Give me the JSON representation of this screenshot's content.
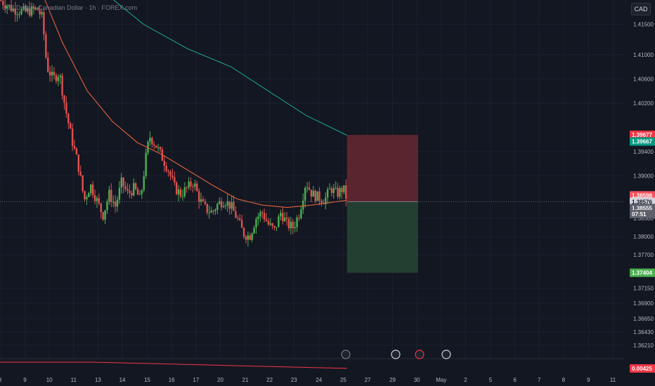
{
  "header": {
    "symbol_title": "U.S. Dollar / Canadian Dollar · 1h · FOREX.com",
    "currency": "CAD"
  },
  "colors": {
    "background": "#131722",
    "up": "#4caf50",
    "down": "#e0514f",
    "ema_fast": "#e0623a",
    "ema_slow": "#1e9e8a",
    "stop_zone": "#5b2530",
    "target_zone": "#233f31"
  },
  "chart_data": {
    "type": "candlestick",
    "ylim": [
      1.36,
      1.419
    ],
    "y_ticks": [
      "1.41500",
      "1.41000",
      "1.40600",
      "1.40200",
      "1.39400",
      "1.39000",
      "1.38300",
      "1.38000",
      "1.37700",
      "1.37150",
      "1.36900",
      "1.36650",
      "1.36430",
      "1.36210"
    ],
    "y_tick_values": [
      1.415,
      1.41,
      1.406,
      1.402,
      1.394,
      1.39,
      1.383,
      1.38,
      1.377,
      1.3715,
      1.369,
      1.3665,
      1.3643,
      1.3621
    ],
    "x_ticks": [
      {
        "label": "8",
        "frac": 0.0
      },
      {
        "label": "9",
        "frac": 0.04
      },
      {
        "label": "10",
        "frac": 0.079
      },
      {
        "label": "11",
        "frac": 0.118
      },
      {
        "label": "13",
        "frac": 0.157
      },
      {
        "label": "14",
        "frac": 0.196
      },
      {
        "label": "15",
        "frac": 0.236
      },
      {
        "label": "16",
        "frac": 0.275
      },
      {
        "label": "17",
        "frac": 0.314
      },
      {
        "label": "20",
        "frac": 0.353
      },
      {
        "label": "21",
        "frac": 0.393
      },
      {
        "label": "22",
        "frac": 0.432
      },
      {
        "label": "23",
        "frac": 0.471
      },
      {
        "label": "24",
        "frac": 0.511
      },
      {
        "label": "25",
        "frac": 0.55
      },
      {
        "label": "27",
        "frac": 0.589
      },
      {
        "label": "29",
        "frac": 0.629
      },
      {
        "label": "30",
        "frac": 0.668
      },
      {
        "label": "May",
        "frac": 0.707
      },
      {
        "label": "2",
        "frac": 0.746
      },
      {
        "label": "5",
        "frac": 0.786
      },
      {
        "label": "6",
        "frac": 0.825
      },
      {
        "label": "7",
        "frac": 0.864
      },
      {
        "label": "8",
        "frac": 0.903
      },
      {
        "label": "9",
        "frac": 0.943
      },
      {
        "label": "11",
        "frac": 0.982
      }
    ],
    "price_path": [
      [
        0.0,
        1.419
      ],
      [
        0.02,
        1.4175
      ],
      [
        0.04,
        1.417
      ],
      [
        0.06,
        1.4175
      ],
      [
        0.068,
        1.416
      ],
      [
        0.075,
        1.408
      ],
      [
        0.085,
        1.406
      ],
      [
        0.095,
        1.407
      ],
      [
        0.105,
        1.401
      ],
      [
        0.115,
        1.396
      ],
      [
        0.125,
        1.392
      ],
      [
        0.135,
        1.386
      ],
      [
        0.145,
        1.3885
      ],
      [
        0.155,
        1.386
      ],
      [
        0.165,
        1.3835
      ],
      [
        0.175,
        1.387
      ],
      [
        0.185,
        1.385
      ],
      [
        0.195,
        1.389
      ],
      [
        0.205,
        1.387
      ],
      [
        0.215,
        1.388
      ],
      [
        0.225,
        1.386
      ],
      [
        0.235,
        1.394
      ],
      [
        0.24,
        1.3965
      ],
      [
        0.25,
        1.395
      ],
      [
        0.26,
        1.393
      ],
      [
        0.27,
        1.391
      ],
      [
        0.28,
        1.388
      ],
      [
        0.29,
        1.387
      ],
      [
        0.3,
        1.388
      ],
      [
        0.31,
        1.389
      ],
      [
        0.32,
        1.386
      ],
      [
        0.33,
        1.3845
      ],
      [
        0.34,
        1.384
      ],
      [
        0.35,
        1.3855
      ],
      [
        0.36,
        1.386
      ],
      [
        0.37,
        1.385
      ],
      [
        0.38,
        1.383
      ],
      [
        0.39,
        1.3805
      ],
      [
        0.4,
        1.38
      ],
      [
        0.41,
        1.383
      ],
      [
        0.42,
        1.384
      ],
      [
        0.43,
        1.382
      ],
      [
        0.44,
        1.381
      ],
      [
        0.45,
        1.384
      ],
      [
        0.46,
        1.382
      ],
      [
        0.47,
        1.3815
      ],
      [
        0.48,
        1.384
      ],
      [
        0.49,
        1.389
      ],
      [
        0.5,
        1.387
      ],
      [
        0.51,
        1.3865
      ],
      [
        0.52,
        1.386
      ],
      [
        0.53,
        1.388
      ],
      [
        0.54,
        1.387
      ],
      [
        0.55,
        1.388
      ],
      [
        0.556,
        1.386
      ]
    ],
    "ema_fast": [
      [
        0.0,
        1.42
      ],
      [
        0.07,
        1.4195
      ],
      [
        0.1,
        1.412
      ],
      [
        0.14,
        1.404
      ],
      [
        0.18,
        1.399
      ],
      [
        0.22,
        1.3955
      ],
      [
        0.26,
        1.3935
      ],
      [
        0.3,
        1.391
      ],
      [
        0.34,
        1.3885
      ],
      [
        0.38,
        1.3862
      ],
      [
        0.42,
        1.3852
      ],
      [
        0.46,
        1.3848
      ],
      [
        0.5,
        1.3852
      ],
      [
        0.556,
        1.386
      ]
    ],
    "ema_slow": [
      [
        0.17,
        1.42
      ],
      [
        0.23,
        1.415
      ],
      [
        0.3,
        1.411
      ],
      [
        0.37,
        1.408
      ],
      [
        0.43,
        1.404
      ],
      [
        0.49,
        1.4
      ],
      [
        0.53,
        1.398
      ],
      [
        0.556,
        1.3967
      ]
    ],
    "position_box": {
      "x_start": 0.556,
      "x_end": 0.67,
      "entry": 1.38576,
      "stop": 1.39677,
      "target": 1.37404
    },
    "price_tags": [
      {
        "label": "1.39677",
        "value": 1.39677,
        "color": "#f23645"
      },
      {
        "label": "1.39667",
        "value": 1.39567,
        "color": "#089981"
      },
      {
        "label": "1.38598",
        "value": 1.3868,
        "color": "#f7525f"
      },
      {
        "label": "1.38576",
        "value": 1.38576,
        "color": "#d1d4dc"
      },
      {
        "label": "1.38555",
        "value": 1.3847,
        "color": "#5d606b"
      },
      {
        "label": "07:51",
        "value": 1.3837,
        "color": "#5d606b"
      },
      {
        "label": "1.37404",
        "value": 1.37404,
        "color": "#4caf50"
      }
    ],
    "indicator": {
      "value_label": "0.00425",
      "color": "#f23645"
    }
  }
}
